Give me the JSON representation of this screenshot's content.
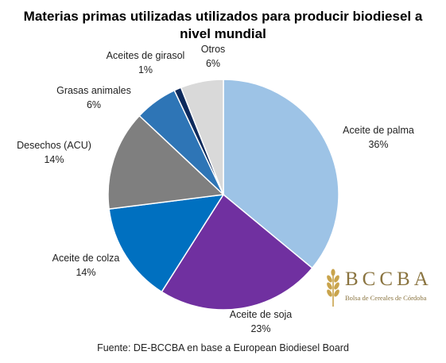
{
  "title_line1": "Materias primas utilizadas utilizados para producir biodiesel a",
  "title_line2": "nivel mundial",
  "source": "Fuente: DE-BCCBA en base a European Biodiesel Board",
  "logo": {
    "name": "BCCBA",
    "subtitle": "Bolsa de Cereales de Córdoba",
    "color": "#c9a44c"
  },
  "chart_data": {
    "type": "pie",
    "title": "Materias primas utilizadas utilizados para producir biodiesel a nivel mundial",
    "start": "12 o'clock",
    "direction": "clockwise",
    "slices": [
      {
        "label": "Aceite de palma",
        "pct_label": "36%",
        "value": 36,
        "color": "#9dc3e6"
      },
      {
        "label": "Aceite de soja",
        "pct_label": "23%",
        "value": 23,
        "color": "#7030a0"
      },
      {
        "label": "Aceite de colza",
        "pct_label": "14%",
        "value": 14,
        "color": "#0070c0"
      },
      {
        "label": "Desechos (ACU)",
        "pct_label": "14%",
        "value": 14,
        "color": "#7f7f7f"
      },
      {
        "label": "Grasas animales",
        "pct_label": "6%",
        "value": 6,
        "color": "#2e75b6"
      },
      {
        "label": "Aceites de girasol",
        "pct_label": "1%",
        "value": 1,
        "color": "#0d2a5c"
      },
      {
        "label": "Otros",
        "pct_label": "6%",
        "value": 6,
        "color": "#d9d9d9"
      }
    ]
  }
}
